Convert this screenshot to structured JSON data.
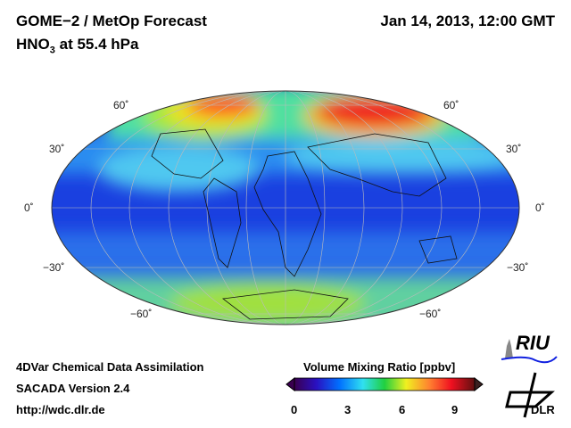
{
  "header": {
    "title": "GOME−2 / MetOp Forecast",
    "species": "HNO",
    "species_sub": "3",
    "level": " at 55.4 hPa",
    "datetime": "Jan 14, 2013, 12:00 GMT"
  },
  "map": {
    "lat_labels": [
      "60˚",
      "30˚",
      "0˚",
      "−30˚",
      "−60˚"
    ],
    "projection": "Hammer-Aitoff global"
  },
  "footer": {
    "line1": "4DVar Chemical Data Assimilation",
    "line2": "SACADA Version 2.4",
    "url": "http://wdc.dlr.de"
  },
  "colorbar": {
    "title": "Volume Mixing Ratio [ppbv]",
    "ticks": [
      "0",
      "3",
      "6",
      "9"
    ],
    "min": 0,
    "max": 10,
    "colors": [
      "#3a0050",
      "#2a10c0",
      "#0060ff",
      "#30d0ff",
      "#30f0c0",
      "#20d040",
      "#f0f020",
      "#ff9030",
      "#f01020",
      "#601010"
    ]
  },
  "logos": {
    "riu": "RIU",
    "dlr": "DLR"
  }
}
